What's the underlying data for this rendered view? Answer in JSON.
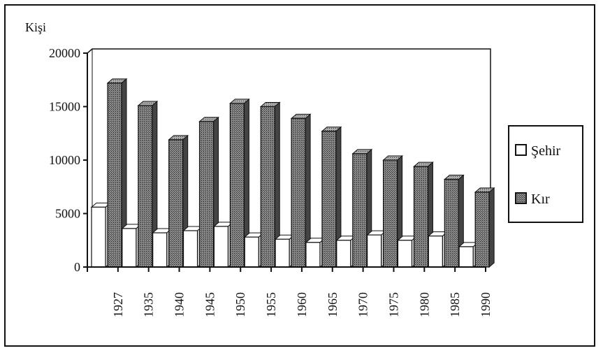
{
  "chart_data": {
    "type": "bar",
    "ylabel": "Kişi",
    "ylim": [
      0,
      20000
    ],
    "yticks": [
      0,
      5000,
      10000,
      15000,
      20000
    ],
    "categories": [
      "1927",
      "1935",
      "1940",
      "1945",
      "1950",
      "1955",
      "1960",
      "1965",
      "1970",
      "1975",
      "1980",
      "1985",
      "1990"
    ],
    "series": [
      {
        "name": "Şehir",
        "color": "#ffffff",
        "values": [
          5600,
          3600,
          3200,
          3400,
          3800,
          2800,
          2600,
          2300,
          2500,
          3000,
          2500,
          2900,
          1900
        ]
      },
      {
        "name": "Kır",
        "color": "#555555",
        "values": [
          17200,
          15100,
          11900,
          13600,
          15300,
          15000,
          13900,
          12700,
          10600,
          10000,
          9400,
          8200,
          7000
        ]
      }
    ],
    "legend_position": "right",
    "grid": false
  }
}
